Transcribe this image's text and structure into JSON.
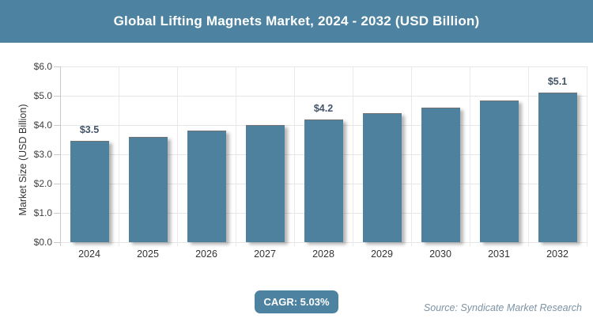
{
  "header": {
    "title": "Global Lifting Magnets Market, 2024 - 2032 (USD Billion)"
  },
  "chart_data": {
    "type": "bar",
    "title": "Global Lifting Magnets Market, 2024 - 2032 (USD Billion)",
    "categories": [
      "2024",
      "2025",
      "2026",
      "2027",
      "2028",
      "2029",
      "2030",
      "2031",
      "2032"
    ],
    "values": [
      3.45,
      3.6,
      3.8,
      4.0,
      4.2,
      4.4,
      4.6,
      4.85,
      5.1
    ],
    "data_labels": [
      "$3.5",
      null,
      null,
      null,
      "$4.2",
      null,
      null,
      null,
      "$5.1"
    ],
    "xlabel": "",
    "ylabel": "Market Size (USD Billion)",
    "ylim": [
      0,
      6
    ],
    "ytick_step": 1,
    "ytick_labels": [
      "$0.0",
      "$1.0",
      "$2.0",
      "$3.0",
      "$4.0",
      "$5.0",
      "$6.0"
    ],
    "grid": "on",
    "legend": "none",
    "bar_color": "#4d819e"
  },
  "footer": {
    "cagr_label": "CAGR: 5.03%",
    "source": "Source: Syndicate Market Research"
  },
  "colors": {
    "header_bg": "#4d83a0",
    "bar_fill": "#4d819e",
    "badge_bg": "#4d83a0",
    "data_label_text": "#44546a",
    "axis_text": "#333333",
    "gridline": "#e6e6e6",
    "source_text": "#7d93a4",
    "title_text": "#ffffff"
  }
}
